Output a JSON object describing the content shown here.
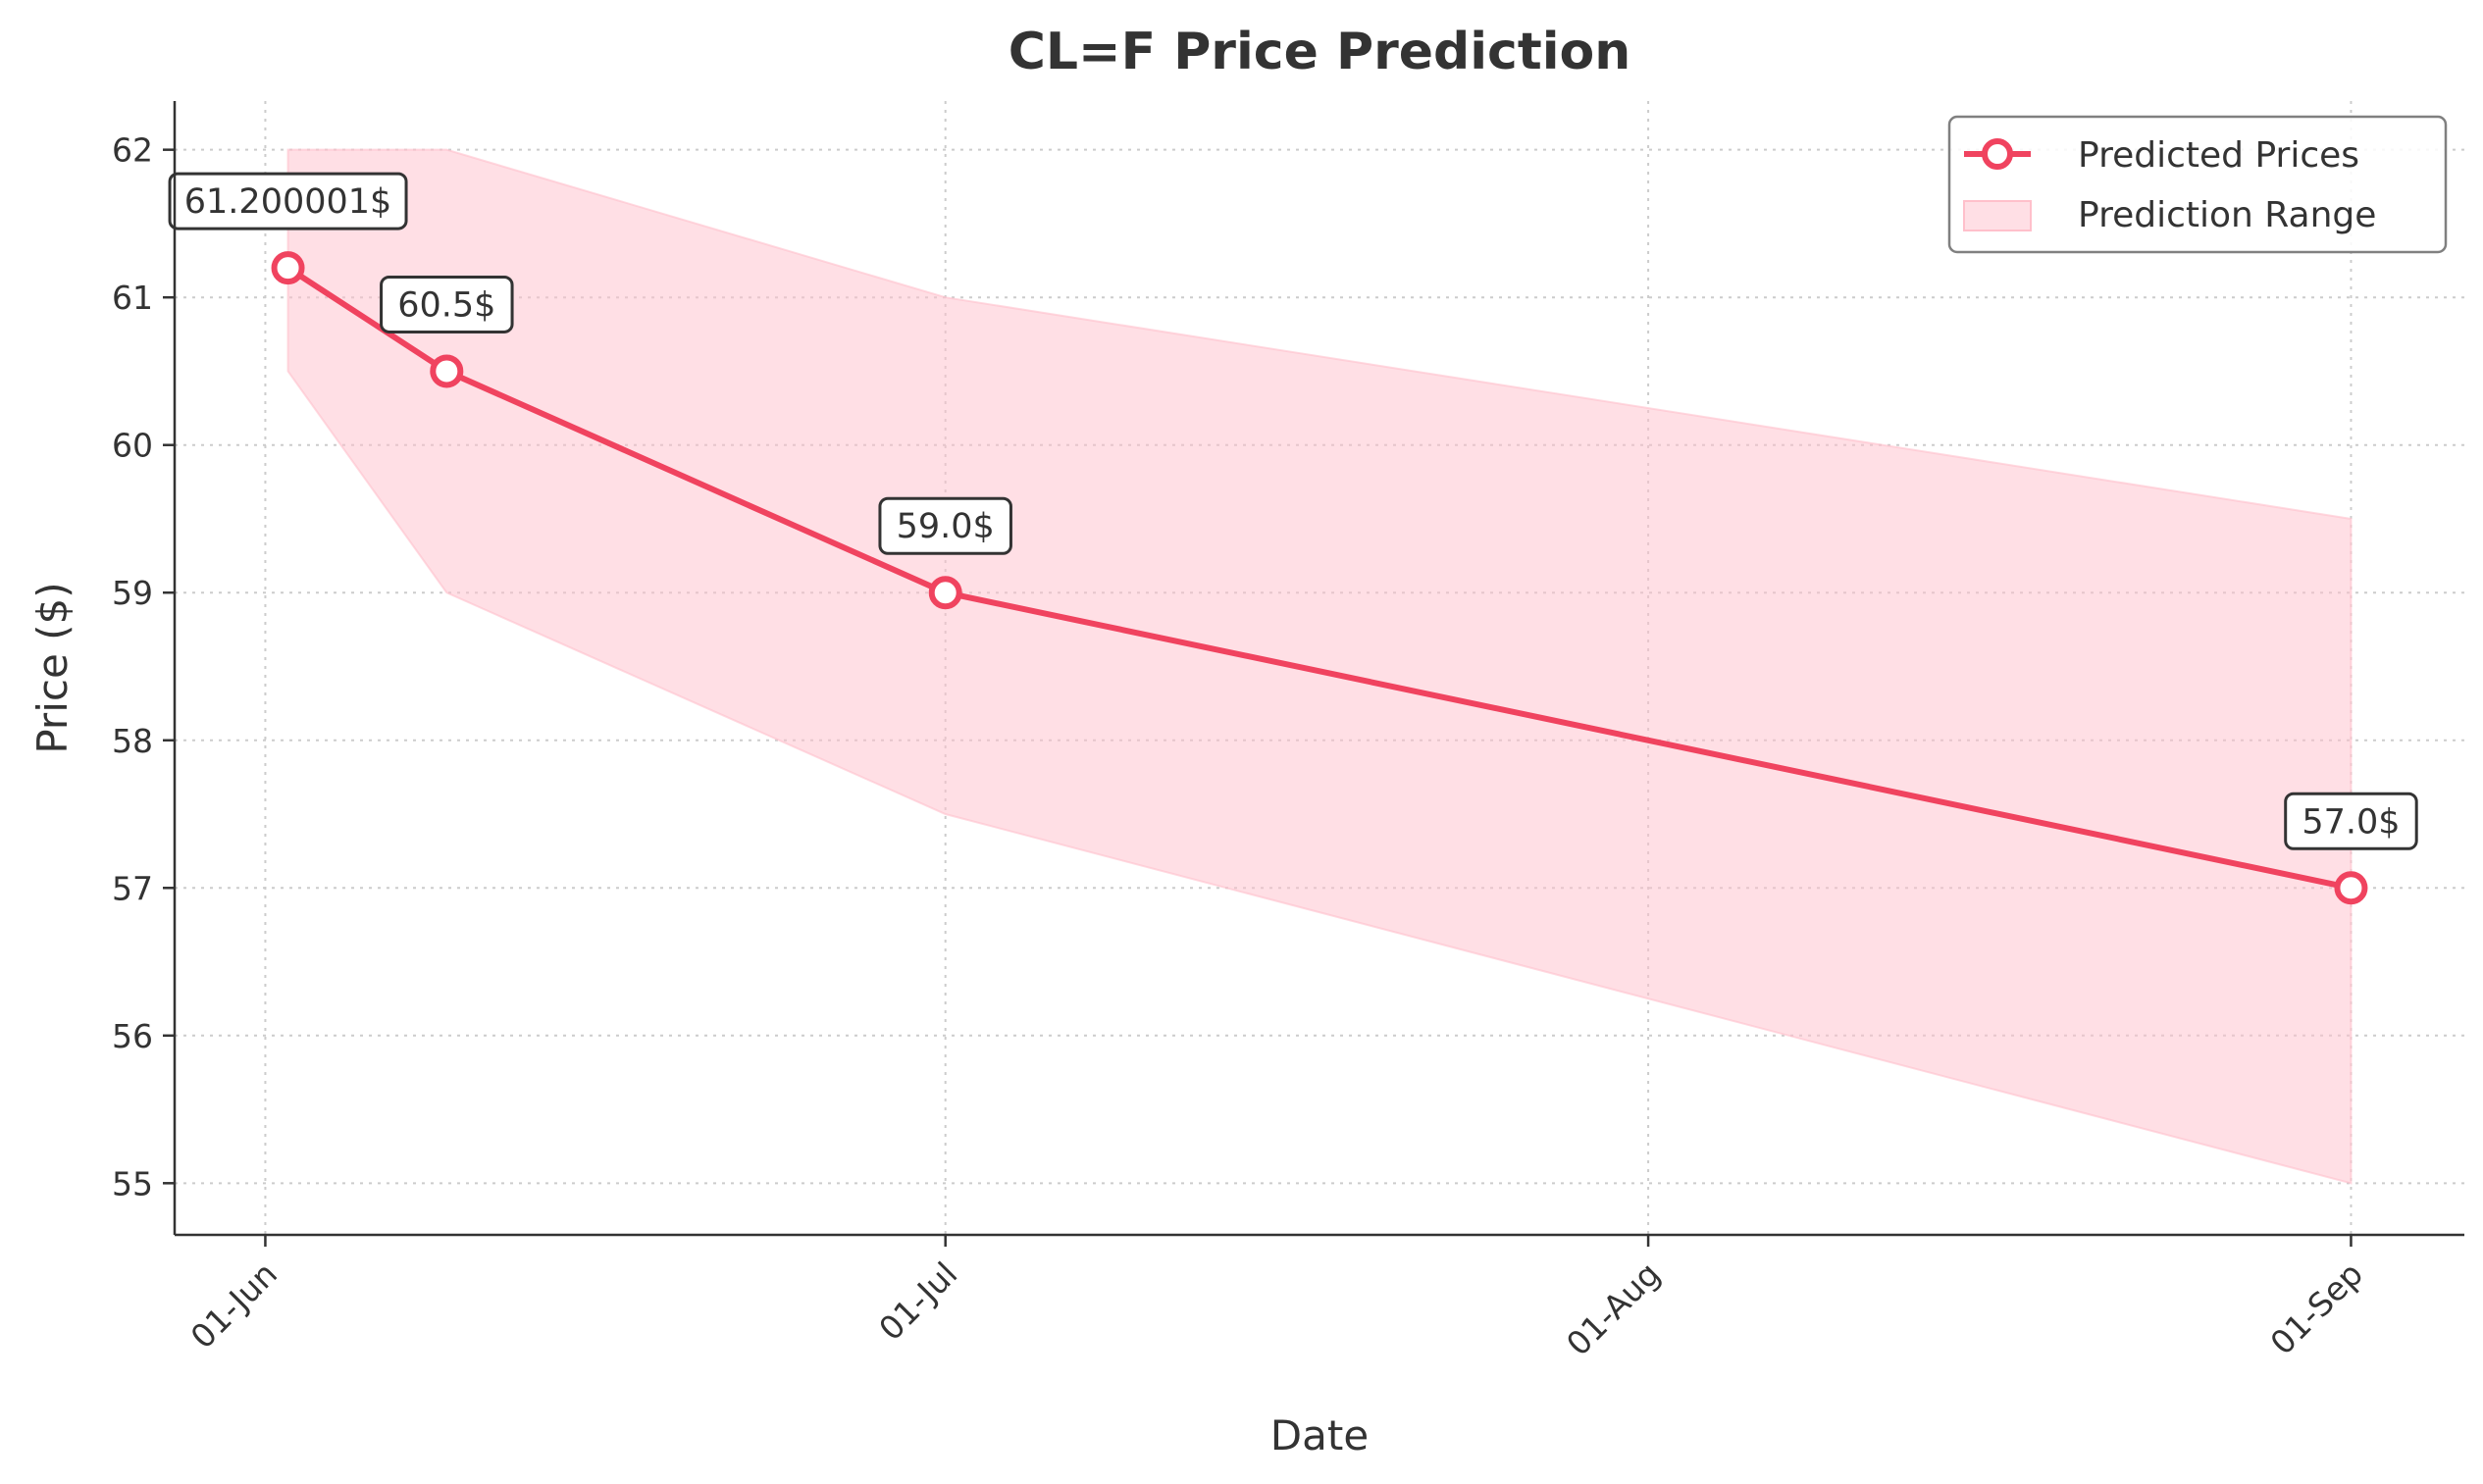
{
  "chart_data": {
    "type": "line",
    "title": "CL=F Price Prediction",
    "xlabel": "Date",
    "ylabel": "Price ($)",
    "x_ticks": [
      "01-Jun",
      "01-Jul",
      "01-Aug",
      "01-Sep"
    ],
    "x_tick_dates": [
      "2025-06-01",
      "2025-07-01",
      "2025-08-01",
      "2025-09-01"
    ],
    "y_ticks": [
      55,
      56,
      57,
      58,
      59,
      60,
      61,
      62
    ],
    "ylim": [
      54.65,
      62.33
    ],
    "xlim": [
      "2025-05-28",
      "2025-09-06"
    ],
    "grid": true,
    "legend_position": "top-right",
    "series": [
      {
        "name": "Predicted Prices",
        "color": "#f0435f",
        "x": [
          "2025-06-02",
          "2025-06-09",
          "2025-07-01",
          "2025-09-01"
        ],
        "values": [
          61.200001,
          60.5,
          59.0,
          57.0
        ],
        "labels": [
          "61.200001$",
          "60.5$",
          "59.0$",
          "57.0$"
        ]
      }
    ],
    "range": {
      "name": "Prediction Range",
      "color": "#ffc0cb",
      "x": [
        "2025-06-02",
        "2025-06-09",
        "2025-07-01",
        "2025-09-01"
      ],
      "upper": [
        62.0,
        62.0,
        61.0,
        59.5
      ],
      "lower": [
        60.5,
        59.0,
        57.5,
        55.0
      ]
    }
  }
}
